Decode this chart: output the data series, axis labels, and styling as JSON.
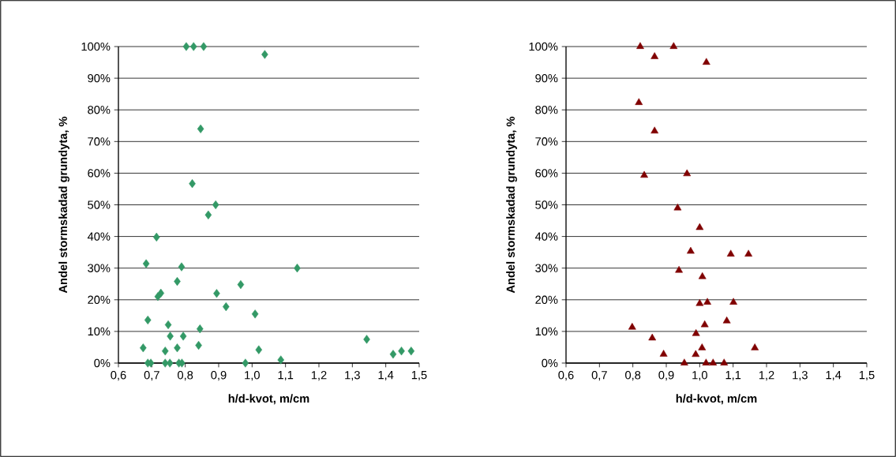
{
  "chart_data": [
    {
      "type": "scatter",
      "xlabel": "h/d-kvot, m/cm",
      "ylabel": "Andel stormskadad grundyta, %",
      "color": "#339966",
      "marker": "diamond",
      "grid": "y",
      "x": [
        0.803,
        0.825,
        0.855,
        1.038,
        0.846,
        0.821,
        0.891,
        0.869,
        0.714,
        0.683,
        0.789,
        1.135,
        0.776,
        0.966,
        0.727,
        0.718,
        0.894,
        0.922,
        1.009,
        0.688,
        0.749,
        0.844,
        0.755,
        0.794,
        1.343,
        0.674,
        0.84,
        0.74,
        0.776,
        1.02,
        1.422,
        1.447,
        1.476,
        1.086,
        0.688,
        0.697,
        0.74,
        0.754,
        0.781,
        0.79,
        0.98
      ],
      "values": [
        100,
        100,
        100,
        97.5,
        74,
        56.7,
        50,
        46.8,
        39.8,
        31.4,
        30.4,
        30,
        25.8,
        24.8,
        22.1,
        21,
        22,
        17.8,
        15.5,
        13.6,
        12.1,
        10.8,
        8.5,
        8.5,
        7.5,
        4.8,
        5.6,
        3.8,
        4.8,
        4.2,
        2.8,
        3.8,
        3.8,
        1,
        0,
        0,
        0,
        0,
        0,
        0,
        0
      ],
      "xlim": [
        0.6,
        1.5
      ],
      "xticks": [
        {
          "value": 0.6,
          "label": "0,6"
        },
        {
          "value": 0.7,
          "label": "0,7"
        },
        {
          "value": 0.8,
          "label": "0,8"
        },
        {
          "value": 0.9,
          "label": "0,9"
        },
        {
          "value": 1.0,
          "label": "1,0"
        },
        {
          "value": 1.1,
          "label": "1,1"
        },
        {
          "value": 1.2,
          "label": "1,2"
        },
        {
          "value": 1.3,
          "label": "1,3"
        },
        {
          "value": 1.4,
          "label": "1,4"
        },
        {
          "value": 1.5,
          "label": "1,5"
        }
      ],
      "ylim": [
        0,
        100
      ],
      "yticks": [
        {
          "value": 0,
          "label": "0%"
        },
        {
          "value": 10,
          "label": "10%"
        },
        {
          "value": 20,
          "label": "20%"
        },
        {
          "value": 30,
          "label": "30%"
        },
        {
          "value": 40,
          "label": "40%"
        },
        {
          "value": 50,
          "label": "50%"
        },
        {
          "value": 60,
          "label": "60%"
        },
        {
          "value": 70,
          "label": "70%"
        },
        {
          "value": 80,
          "label": "80%"
        },
        {
          "value": 90,
          "label": "90%"
        },
        {
          "value": 100,
          "label": "100%"
        }
      ]
    },
    {
      "type": "scatter",
      "xlabel": "h/d-kvot, m/cm",
      "ylabel": "Andel stormskadad grundyta, %",
      "color": "#800000",
      "marker": "triangle",
      "grid": "y",
      "x": [
        0.822,
        0.922,
        0.865,
        1.02,
        0.818,
        0.865,
        0.834,
        0.962,
        0.934,
        1.0,
        0.973,
        1.093,
        1.146,
        0.938,
        1.008,
        1.0,
        1.023,
        1.101,
        1.081,
        1.015,
        0.798,
        0.989,
        0.858,
        1.007,
        1.165,
        0.892,
        0.988,
        0.954,
        1.019,
        1.04,
        1.073
      ],
      "values": [
        100,
        100,
        96.8,
        95,
        82.3,
        73.3,
        59.3,
        59.8,
        49,
        42.8,
        35.3,
        34.4,
        34.4,
        29.3,
        27.3,
        18.8,
        19.2,
        19.2,
        13.3,
        12.1,
        11.3,
        9.3,
        7.9,
        4.8,
        4.8,
        2.8,
        2.7,
        0,
        0,
        0,
        0
      ],
      "xlim": [
        0.6,
        1.5
      ],
      "xticks": [
        {
          "value": 0.6,
          "label": "0,6"
        },
        {
          "value": 0.7,
          "label": "0,7"
        },
        {
          "value": 0.8,
          "label": "0,8"
        },
        {
          "value": 0.9,
          "label": "0,9"
        },
        {
          "value": 1.0,
          "label": "1,0"
        },
        {
          "value": 1.1,
          "label": "1,1"
        },
        {
          "value": 1.2,
          "label": "1,2"
        },
        {
          "value": 1.3,
          "label": "1,3"
        },
        {
          "value": 1.4,
          "label": "1,4"
        },
        {
          "value": 1.5,
          "label": "1,5"
        }
      ],
      "ylim": [
        0,
        100
      ],
      "yticks": [
        {
          "value": 0,
          "label": "0%"
        },
        {
          "value": 10,
          "label": "10%"
        },
        {
          "value": 20,
          "label": "20%"
        },
        {
          "value": 30,
          "label": "30%"
        },
        {
          "value": 40,
          "label": "40%"
        },
        {
          "value": 50,
          "label": "50%"
        },
        {
          "value": 60,
          "label": "60%"
        },
        {
          "value": 70,
          "label": "70%"
        },
        {
          "value": 80,
          "label": "80%"
        },
        {
          "value": 90,
          "label": "90%"
        },
        {
          "value": 100,
          "label": "100%"
        }
      ]
    }
  ]
}
